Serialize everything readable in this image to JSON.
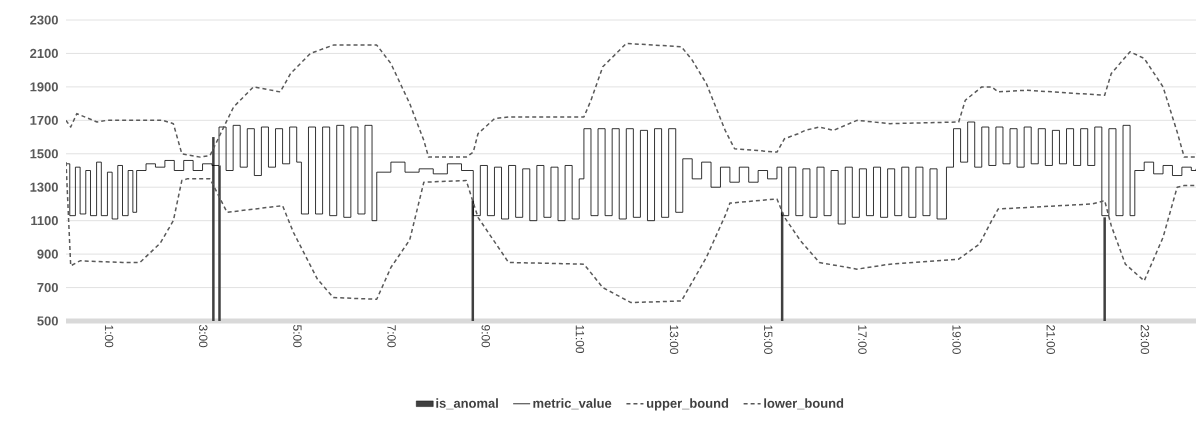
{
  "chart_data": {
    "type": "line",
    "xlim": [
      0,
      24
    ],
    "xticks": [
      {
        "value": 1,
        "label": "1:00"
      },
      {
        "value": 3,
        "label": "3:00"
      },
      {
        "value": 5,
        "label": "5:00"
      },
      {
        "value": 7,
        "label": "7:00"
      },
      {
        "value": 9,
        "label": "9:00"
      },
      {
        "value": 11,
        "label": "11:00"
      },
      {
        "value": 13,
        "label": "13:00"
      },
      {
        "value": 15,
        "label": "15:00"
      },
      {
        "value": 17,
        "label": "17:00"
      },
      {
        "value": 19,
        "label": "19:00"
      },
      {
        "value": 21,
        "label": "21:00"
      },
      {
        "value": 23,
        "label": "23:00"
      }
    ],
    "ylim": [
      500,
      2300
    ],
    "yticks": [
      500,
      700,
      900,
      1100,
      1300,
      1500,
      1700,
      1900,
      2100,
      2300
    ],
    "grid": "y",
    "legend": "bottom",
    "series": [
      {
        "name": "is_anomal",
        "type": "bar",
        "color": "#404040",
        "x": [
          3.13,
          3.26,
          8.64,
          15.21,
          22.06
        ],
        "values": [
          1600,
          1430,
          1220,
          1150,
          1120
        ]
      },
      {
        "name": "metric_value",
        "type": "step",
        "color": "#000000",
        "line_style": "solid",
        "x": [
          0,
          0.08,
          0.2,
          0.3,
          0.42,
          0.52,
          0.65,
          0.75,
          0.88,
          0.98,
          1.1,
          1.2,
          1.32,
          1.42,
          1.5,
          1.7,
          1.9,
          2.1,
          2.3,
          2.5,
          2.7,
          2.9,
          3.1,
          3.25,
          3.4,
          3.55,
          3.7,
          3.85,
          4.0,
          4.15,
          4.3,
          4.45,
          4.6,
          4.75,
          4.9,
          5.0,
          5.15,
          5.3,
          5.45,
          5.6,
          5.75,
          5.9,
          6.05,
          6.2,
          6.35,
          6.5,
          6.6,
          6.9,
          7.2,
          7.5,
          7.8,
          8.1,
          8.4,
          8.65,
          8.8,
          8.95,
          9.1,
          9.25,
          9.4,
          9.55,
          9.7,
          9.85,
          10.0,
          10.15,
          10.3,
          10.45,
          10.6,
          10.75,
          10.9,
          11.0,
          11.15,
          11.3,
          11.45,
          11.6,
          11.75,
          11.9,
          12.05,
          12.2,
          12.35,
          12.5,
          12.65,
          12.8,
          12.95,
          13.1,
          13.3,
          13.5,
          13.7,
          13.9,
          14.1,
          14.3,
          14.5,
          14.7,
          14.9,
          15.1,
          15.2,
          15.35,
          15.5,
          15.65,
          15.8,
          15.95,
          16.1,
          16.25,
          16.4,
          16.55,
          16.7,
          16.85,
          17.0,
          17.15,
          17.3,
          17.45,
          17.6,
          17.75,
          17.9,
          18.05,
          18.2,
          18.35,
          18.5,
          18.7,
          18.85,
          19.0,
          19.15,
          19.3,
          19.45,
          19.6,
          19.75,
          19.9,
          20.05,
          20.2,
          20.35,
          20.5,
          20.65,
          20.8,
          20.95,
          21.1,
          21.25,
          21.4,
          21.55,
          21.7,
          21.85,
          22.0,
          22.15,
          22.3,
          22.45,
          22.6,
          22.7,
          22.9,
          23.1,
          23.3,
          23.5,
          23.7,
          23.9,
          24
        ],
        "values": [
          1440,
          1130,
          1420,
          1140,
          1400,
          1130,
          1450,
          1130,
          1390,
          1110,
          1430,
          1130,
          1400,
          1150,
          1400,
          1440,
          1420,
          1460,
          1400,
          1460,
          1400,
          1440,
          1430,
          1660,
          1400,
          1670,
          1420,
          1650,
          1370,
          1660,
          1420,
          1650,
          1440,
          1660,
          1450,
          1140,
          1660,
          1140,
          1660,
          1130,
          1670,
          1120,
          1660,
          1140,
          1670,
          1100,
          1390,
          1450,
          1390,
          1410,
          1380,
          1440,
          1400,
          1130,
          1430,
          1130,
          1420,
          1110,
          1430,
          1120,
          1410,
          1100,
          1430,
          1120,
          1420,
          1100,
          1430,
          1110,
          1350,
          1650,
          1130,
          1650,
          1130,
          1650,
          1110,
          1650,
          1120,
          1640,
          1100,
          1650,
          1120,
          1650,
          1150,
          1470,
          1350,
          1450,
          1300,
          1420,
          1330,
          1420,
          1330,
          1400,
          1350,
          1420,
          1130,
          1420,
          1130,
          1410,
          1120,
          1420,
          1130,
          1400,
          1080,
          1420,
          1120,
          1410,
          1130,
          1420,
          1120,
          1410,
          1130,
          1420,
          1120,
          1420,
          1130,
          1410,
          1110,
          1420,
          1650,
          1450,
          1690,
          1420,
          1660,
          1430,
          1660,
          1440,
          1650,
          1420,
          1660,
          1440,
          1650,
          1430,
          1640,
          1440,
          1650,
          1430,
          1650,
          1430,
          1660,
          1130,
          1650,
          1130,
          1670,
          1130,
          1400,
          1450,
          1380,
          1430,
          1370,
          1420,
          1400,
          1410
        ]
      },
      {
        "name": "upper_bound",
        "color": "#595959",
        "line_style": "dashed",
        "x": [
          0,
          0.1,
          0.23,
          0.66,
          0.87,
          2.06,
          2.28,
          2.46,
          2.85,
          3.06,
          3.42,
          3.56,
          3.98,
          4.55,
          4.77,
          5.19,
          5.68,
          6.6,
          6.9,
          7.3,
          7.6,
          7.7,
          8.5,
          8.65,
          8.75,
          9.1,
          9.4,
          11.0,
          11.15,
          11.4,
          11.9,
          13.07,
          13.3,
          13.6,
          14.0,
          14.2,
          15.1,
          15.26,
          15.55,
          15.7,
          16.0,
          16.3,
          16.8,
          17.5,
          18.96,
          19.1,
          19.45,
          19.66,
          19.8,
          20.4,
          22.06,
          22.2,
          22.6,
          22.9,
          23.3,
          23.6,
          23.75,
          24
        ],
        "values": [
          1700,
          1660,
          1740,
          1690,
          1700,
          1700,
          1680,
          1500,
          1480,
          1490,
          1700,
          1780,
          1900,
          1870,
          1980,
          2100,
          2150,
          2150,
          2040,
          1800,
          1580,
          1480,
          1480,
          1510,
          1620,
          1710,
          1720,
          1720,
          1820,
          2020,
          2160,
          2140,
          2060,
          1920,
          1640,
          1530,
          1510,
          1590,
          1620,
          1640,
          1660,
          1640,
          1700,
          1680,
          1690,
          1820,
          1900,
          1900,
          1870,
          1880,
          1850,
          1980,
          2110,
          2070,
          1900,
          1630,
          1480,
          1480
        ]
      },
      {
        "name": "lower_bound",
        "color": "#595959",
        "line_style": "dashed",
        "x": [
          0,
          0.1,
          0.3,
          1.2,
          1.57,
          2.0,
          2.28,
          2.46,
          2.57,
          3.06,
          3.42,
          4.6,
          4.83,
          5.34,
          5.68,
          6.6,
          6.9,
          7.3,
          7.6,
          8.5,
          8.75,
          9.4,
          11.0,
          11.4,
          12.0,
          13.07,
          13.6,
          14.0,
          14.1,
          15.1,
          15.26,
          15.6,
          16.0,
          16.8,
          17.5,
          18.96,
          19.4,
          19.66,
          19.8,
          21.8,
          22.06,
          22.2,
          22.5,
          22.9,
          23.3,
          23.6,
          23.75,
          24
        ],
        "values": [
          1450,
          830,
          860,
          850,
          850,
          965,
          1100,
          1340,
          1350,
          1350,
          1150,
          1190,
          1030,
          750,
          640,
          630,
          820,
          985,
          1330,
          1340,
          1120,
          850,
          840,
          700,
          610,
          620,
          880,
          1130,
          1205,
          1230,
          1120,
          980,
          850,
          810,
          840,
          870,
          960,
          1100,
          1170,
          1200,
          1220,
          1070,
          840,
          740,
          1000,
          1300,
          1310,
          1310
        ]
      }
    ]
  }
}
